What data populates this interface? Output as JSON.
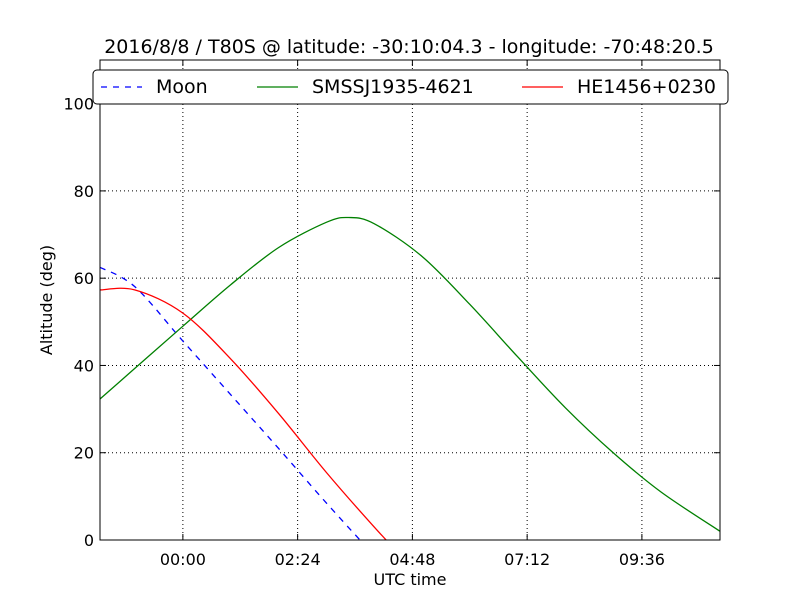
{
  "chart_data": {
    "type": "line",
    "title": "2016/8/8 / T80S @ latitude: -30:10:04.3 - longitude: -70:48:20.5",
    "xlabel": "UTC time",
    "ylabel": "Altitude (deg)",
    "xlim": [
      "-01:44",
      "11:14"
    ],
    "ylim": [
      0,
      110
    ],
    "x_ticks": [
      "00:00",
      "02:24",
      "04:48",
      "07:12",
      "09:36"
    ],
    "y_ticks": [
      0,
      20,
      40,
      60,
      80,
      100
    ],
    "grid": true,
    "legend_position": "top",
    "series": [
      {
        "name": "Moon",
        "color": "#0000ff",
        "style": "dashed",
        "x": [
          "-01:44",
          "-01:00",
          "00:00",
          "01:00",
          "02:00",
          "03:00",
          "04:00",
          "04:12"
        ],
        "y": [
          62.5,
          58.0,
          45.6,
          33.3,
          21.0,
          8.5,
          -3.5,
          -5.5
        ]
      },
      {
        "name": "SMSSJ1935-4621",
        "color": "#008000",
        "style": "solid",
        "x": [
          "-01:44",
          "00:00",
          "01:00",
          "02:00",
          "03:00",
          "03:28",
          "04:00",
          "05:00",
          "06:00",
          "07:00",
          "08:00",
          "09:00",
          "10:00",
          "11:14"
        ],
        "y": [
          32.3,
          49.0,
          58.5,
          67.0,
          72.8,
          73.9,
          72.5,
          65.0,
          54.0,
          42.0,
          30.3,
          20.0,
          11.0,
          2.0
        ]
      },
      {
        "name": "HE1456+0230",
        "color": "#ff0000",
        "style": "solid",
        "x": [
          "-01:44",
          "-01:00",
          "00:00",
          "01:00",
          "02:00",
          "03:00",
          "04:00",
          "04:56"
        ],
        "y": [
          57.3,
          57.3,
          52.0,
          41.5,
          29.0,
          15.5,
          3.0,
          -8.0
        ]
      }
    ]
  }
}
